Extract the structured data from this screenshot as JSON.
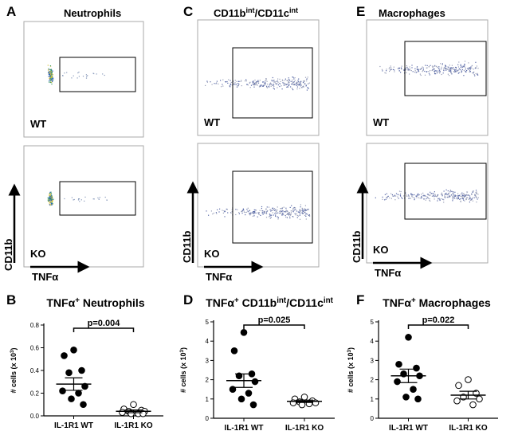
{
  "flow_panels": [
    {
      "letter": "A",
      "title": [
        {
          "text": "Neutrophils"
        }
      ],
      "top_label": "WT",
      "bottom_label": "KO",
      "y_axis": "CD11b",
      "x_axis": "TNFα"
    },
    {
      "letter": "C",
      "title": [
        {
          "text": "CD11b"
        },
        {
          "text": "int",
          "sup": true
        },
        {
          "text": "/CD11c"
        },
        {
          "text": "int",
          "sup": true
        }
      ],
      "top_label": "WT",
      "bottom_label": "KO",
      "y_axis": "CD11b",
      "x_axis": "TNFα"
    },
    {
      "letter": "E",
      "title": [
        {
          "text": "Macrophages"
        }
      ],
      "top_label": "WT",
      "bottom_label": "KO",
      "y_axis": "CD11b",
      "x_axis": "TNFα"
    }
  ],
  "chart_data": [
    {
      "type": "dotplot",
      "letter": "B",
      "title": [
        {
          "text": "TNFα"
        },
        {
          "text": "+",
          "sup": true
        },
        {
          "text": " Neutrophils"
        }
      ],
      "y_label": [
        {
          "text": "# cells (x 10"
        },
        {
          "text": "3",
          "sup": true
        },
        {
          "text": ")"
        }
      ],
      "categories": [
        "IL-1R1 WT",
        "IL-1R1 KO"
      ],
      "values": [
        [
          0.58,
          0.53,
          0.4,
          0.38,
          0.26,
          0.22,
          0.2,
          0.15,
          0.1
        ],
        [
          0.1,
          0.06,
          0.05,
          0.04,
          0.04,
          0.03,
          0.02,
          0.02,
          0.02
        ]
      ],
      "mean": [
        0.28,
        0.04
      ],
      "sem": [
        0.055,
        0.012
      ],
      "marker_fill": [
        "#000000",
        "#ffffff"
      ],
      "annotation": "p=0.004",
      "ylim": [
        0,
        0.8
      ],
      "yticks": [
        {
          "value": 0,
          "label": "0.0"
        },
        0.2,
        0.4,
        0.6,
        0.8
      ]
    },
    {
      "type": "dotplot",
      "letter": "D",
      "title": [
        {
          "text": "TNFα"
        },
        {
          "text": "+",
          "sup": true
        },
        {
          "text": " CD11b"
        },
        {
          "text": "int",
          "sup": true
        },
        {
          "text": "/CD11c"
        },
        {
          "text": "int",
          "sup": true
        }
      ],
      "y_label": [
        {
          "text": "# cells (x 10"
        },
        {
          "text": "3",
          "sup": true
        },
        {
          "text": ")"
        }
      ],
      "categories": [
        "IL-1R1 WT",
        "IL-1R1 KO"
      ],
      "values": [
        [
          4.45,
          3.5,
          2.3,
          2.2,
          1.9,
          1.5,
          1.3,
          1.0,
          0.7
        ],
        [
          1.1,
          1.0,
          0.9,
          0.85,
          0.8,
          0.8,
          0.75,
          0.7
        ]
      ],
      "mean": [
        1.95,
        0.88
      ],
      "sem": [
        0.35,
        0.06
      ],
      "marker_fill": [
        "#000000",
        "#ffffff"
      ],
      "annotation": "p=0.025",
      "ylim": [
        0,
        5
      ],
      "yticks": [
        0,
        1,
        2,
        3,
        4,
        5
      ]
    },
    {
      "type": "dotplot",
      "letter": "F",
      "title": [
        {
          "text": "TNFα"
        },
        {
          "text": "+",
          "sup": true
        },
        {
          "text": " Macrophages"
        }
      ],
      "y_label": [
        {
          "text": "# cells (x 10"
        },
        {
          "text": "3",
          "sup": true
        },
        {
          "text": ")"
        }
      ],
      "categories": [
        "IL-1R1 WT",
        "IL-1R1 KO"
      ],
      "values": [
        [
          4.2,
          2.8,
          2.6,
          2.3,
          2.2,
          1.9,
          1.5,
          1.1,
          1.0
        ],
        [
          2.0,
          1.7,
          1.3,
          1.1,
          1.0,
          0.9,
          0.7
        ]
      ],
      "mean": [
        2.2,
        1.2
      ],
      "sem": [
        0.35,
        0.2
      ],
      "marker_fill": [
        "#000000",
        "#ffffff"
      ],
      "annotation": "p=0.022",
      "ylim": [
        0,
        5
      ],
      "yticks": [
        0,
        1,
        2,
        3,
        4,
        5
      ]
    }
  ]
}
